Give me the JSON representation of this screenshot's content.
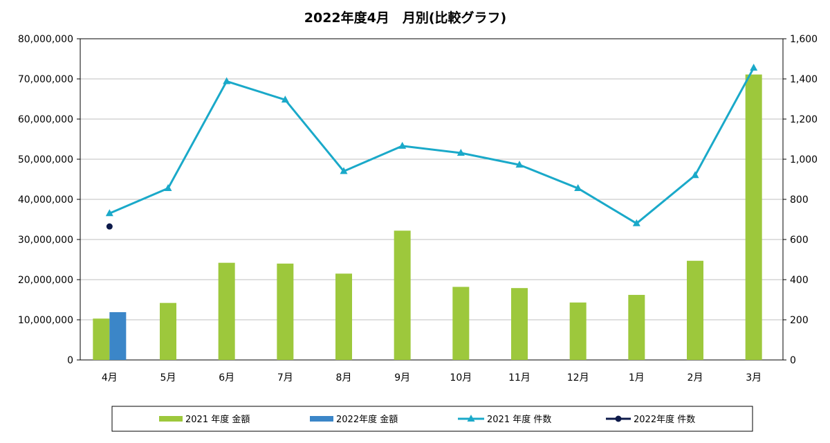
{
  "chart_data": {
    "type": "bar",
    "title": "2022年度4月　月別(比較グラフ)",
    "categories": [
      "4月",
      "5月",
      "6月",
      "7月",
      "8月",
      "9月",
      "10月",
      "11月",
      "12月",
      "1月",
      "2月",
      "3月"
    ],
    "y_left": {
      "ylim": [
        0,
        80000000
      ],
      "ticks": [
        0,
        10000000,
        20000000,
        30000000,
        40000000,
        50000000,
        60000000,
        70000000,
        80000000
      ],
      "tick_labels": [
        "0",
        "10,000,000",
        "20,000,000",
        "30,000,000",
        "40,000,000",
        "50,000,000",
        "60,000,000",
        "70,000,000",
        "80,000,000"
      ]
    },
    "y_right": {
      "ylim": [
        0,
        1600
      ],
      "ticks": [
        0,
        200,
        400,
        600,
        800,
        1000,
        1200,
        1400,
        1600
      ],
      "tick_labels": [
        "0",
        "200",
        "400",
        "600",
        "800",
        "1,000",
        "1,200",
        "1,400",
        "1,600"
      ]
    },
    "series": [
      {
        "name": "2021 年度 金額",
        "kind": "bar",
        "axis": "left",
        "color": "#9dc83c",
        "values": [
          10300000,
          14200000,
          24200000,
          24000000,
          21500000,
          32200000,
          18200000,
          17900000,
          14300000,
          16200000,
          24700000,
          71100000
        ]
      },
      {
        "name": "2022年度 金額",
        "kind": "bar",
        "axis": "left",
        "color": "#3b86c8",
        "values": [
          11900000,
          null,
          null,
          null,
          null,
          null,
          null,
          null,
          null,
          null,
          null,
          null
        ]
      },
      {
        "name": "2021 年度 件数",
        "kind": "line",
        "axis": "right",
        "color": "#1aa9c9",
        "marker": "triangle",
        "values": [
          730,
          855,
          1388,
          1296,
          940,
          1066,
          1031,
          972,
          855,
          680,
          920,
          1455
        ]
      },
      {
        "name": "2022年度 件数",
        "kind": "line",
        "axis": "right",
        "color": "#0d1a4a",
        "marker": "circle",
        "values": [
          665,
          null,
          null,
          null,
          null,
          null,
          null,
          null,
          null,
          null,
          null,
          null
        ]
      }
    ],
    "grid": "horizontal",
    "legend_position": "bottom"
  }
}
